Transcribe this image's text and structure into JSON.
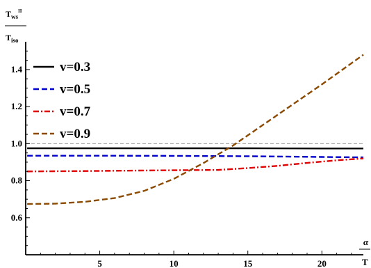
{
  "chart_data": {
    "type": "line",
    "ylabel": {
      "numerator": "T",
      "numerator_sub": "ws",
      "numerator_sup": "II",
      "denominator": "T",
      "denominator_sub": "iso"
    },
    "xlabel": {
      "numerator": "α",
      "denominator": "T"
    },
    "xlim": [
      0,
      22.8
    ],
    "ylim": [
      0.4,
      1.55
    ],
    "xticks": [
      5,
      10,
      15,
      20
    ],
    "xtick_labels": [
      "5",
      "10",
      "15",
      "20"
    ],
    "yticks": [
      0.6,
      0.8,
      1.0,
      1.2,
      1.4
    ],
    "ytick_labels": [
      "0.6",
      "0.8",
      "1.0",
      "1.2",
      "1.4"
    ],
    "reference_line": {
      "y": 1.0,
      "style": "dashed",
      "color": "#999999"
    },
    "legend_position": "top-left",
    "series": [
      {
        "name": "v=0.3",
        "color": "#000000",
        "dash": "solid",
        "x": [
          0.1,
          5,
          10,
          15,
          20,
          22.8
        ],
        "y": [
          0.975,
          0.975,
          0.975,
          0.975,
          0.974,
          0.974
        ]
      },
      {
        "name": "v=0.5",
        "color": "#0000cc",
        "dash": "dash",
        "x": [
          0.1,
          5,
          10,
          15,
          20,
          22.8
        ],
        "y": [
          0.935,
          0.935,
          0.934,
          0.932,
          0.928,
          0.926
        ]
      },
      {
        "name": "v=0.7",
        "color": "#e00000",
        "dash": "dashdot",
        "x": [
          0.1,
          4,
          8,
          11,
          13,
          15,
          17,
          19,
          21,
          22.8
        ],
        "y": [
          0.85,
          0.852,
          0.855,
          0.857,
          0.858,
          0.868,
          0.88,
          0.896,
          0.91,
          0.92
        ]
      },
      {
        "name": "v=0.9",
        "color": "#8b4a00",
        "dash": "dash",
        "x": [
          0.1,
          2,
          4,
          6,
          8,
          10,
          12,
          14,
          16,
          18,
          20,
          22.8
        ],
        "y": [
          0.674,
          0.676,
          0.686,
          0.706,
          0.745,
          0.81,
          0.895,
          0.99,
          1.1,
          1.21,
          1.32,
          1.48
        ]
      }
    ]
  }
}
